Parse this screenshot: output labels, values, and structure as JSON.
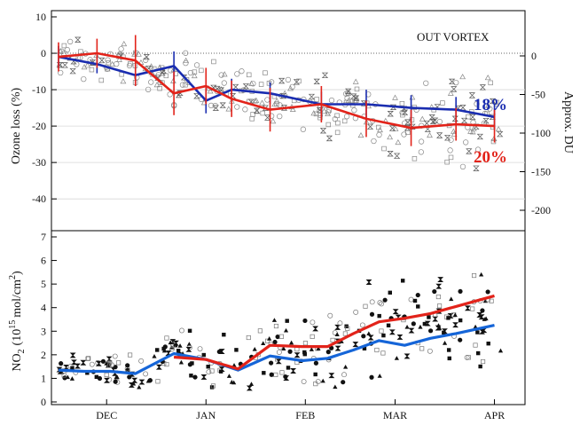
{
  "chart_data": [
    {
      "type": "line",
      "panel": "top",
      "ylabel": "Ozone loss (%)",
      "y2label": "Approx. DU",
      "annotation": "OUT VORTEX",
      "ylim": [
        -48,
        10
      ],
      "yticks": [
        10,
        0,
        -10,
        -20,
        -30,
        -40
      ],
      "y2lim": [
        -240,
        50
      ],
      "y2ticks": [
        0,
        -50,
        -100,
        -150,
        -200
      ],
      "grid": "horizontal dotted",
      "zero_line": "dotted",
      "xlim": [
        0,
        140
      ],
      "series": [
        {
          "color": "#1a2db0",
          "label": "18%",
          "x": [
            0,
            12,
            24,
            36,
            46,
            54,
            66,
            82,
            96,
            110,
            124,
            136
          ],
          "y": [
            -1,
            -3,
            -6,
            -3.5,
            -13,
            -10,
            -11,
            -14,
            -14,
            -15,
            -15.5,
            -17.5
          ],
          "error": [
            3,
            2.5,
            3,
            4,
            3.5,
            3,
            3,
            3.5,
            4,
            3.5,
            3.5,
            3.5
          ]
        },
        {
          "color": "#e2231a",
          "label": "20%",
          "x": [
            0,
            12,
            24,
            36,
            46,
            54,
            66,
            82,
            96,
            110,
            124,
            136
          ],
          "y": [
            -1,
            0,
            -2,
            -11,
            -9,
            -12.5,
            -15.5,
            -14,
            -18,
            -20.5,
            -19.5,
            -20
          ],
          "error": [
            4,
            4,
            7,
            6,
            5,
            5,
            6,
            5,
            5,
            5,
            4.5,
            4.5
          ]
        }
      ],
      "scatter_markers": [
        "bowtie",
        "circle",
        "triangle",
        "square"
      ]
    },
    {
      "type": "line",
      "panel": "bottom",
      "ylabel": "NO2 (10^15 mol/cm^2)",
      "ylim": [
        0,
        7
      ],
      "yticks": [
        0,
        1,
        2,
        3,
        4,
        5,
        6,
        7
      ],
      "xlim": [
        0,
        140
      ],
      "xticks": [
        {
          "x": 15,
          "label": "DEC"
        },
        {
          "x": 46,
          "label": "JAN"
        },
        {
          "x": 77,
          "label": "FEB"
        },
        {
          "x": 105,
          "label": "MAR"
        },
        {
          "x": 136,
          "label": "APR"
        }
      ],
      "series": [
        {
          "color": "#1565d8",
          "x": [
            0,
            8,
            16,
            24,
            36,
            46,
            56,
            66,
            76,
            84,
            92,
            100,
            108,
            116,
            124,
            136
          ],
          "y": [
            1.35,
            1.3,
            1.3,
            1.2,
            2.05,
            1.8,
            1.35,
            1.95,
            1.75,
            1.85,
            2.2,
            2.6,
            2.4,
            2.7,
            2.9,
            3.25
          ]
        },
        {
          "color": "#e2231a",
          "x": [
            36,
            46,
            56,
            66,
            76,
            84,
            92,
            100,
            108,
            116,
            124,
            136
          ],
          "y": [
            1.9,
            1.8,
            1.4,
            2.4,
            2.35,
            2.35,
            2.9,
            3.4,
            3.55,
            3.75,
            4.05,
            4.5
          ]
        }
      ],
      "scatter_markers": [
        "bowtie",
        "filled-circle",
        "open-circle",
        "filled-square",
        "open-square",
        "filled-triangle"
      ]
    }
  ],
  "labels": {
    "top_ylabel": "Ozone loss (%)",
    "top_y2label": "Approx. DU",
    "annotation": "OUT VORTEX",
    "blue_pct": "18%",
    "red_pct": "20%",
    "bottom_ylabel_main": "NO",
    "bottom_ylabel_sub": "2",
    "bottom_ylabel_rest": "(10",
    "bottom_ylabel_exp": "15",
    "bottom_ylabel_tail": "mol/cm",
    "bottom_ylabel_tailexp": "2",
    "bottom_ylabel_close": ")"
  }
}
